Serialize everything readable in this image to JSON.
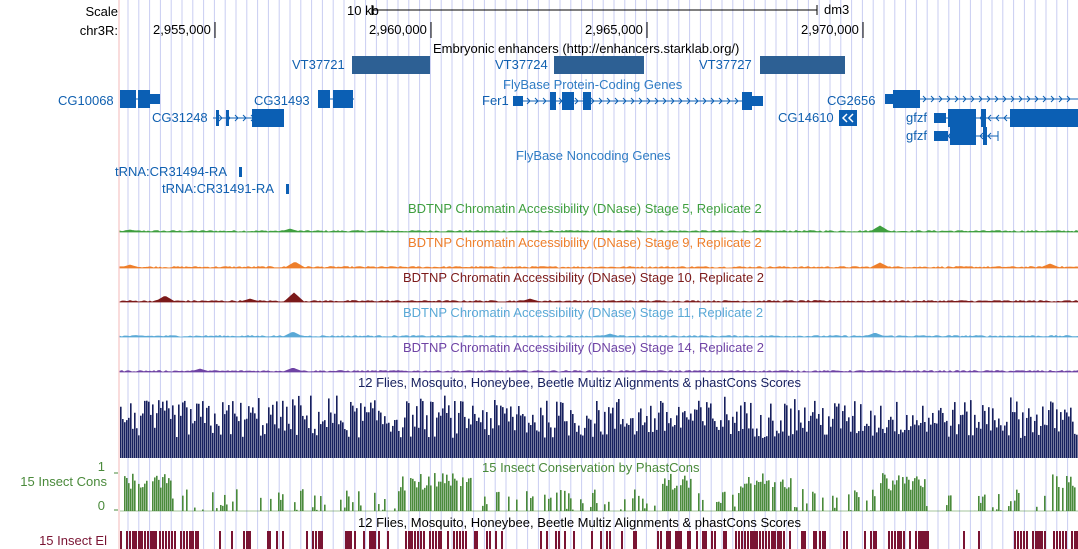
{
  "colors": {
    "guideline": "#c9cdf2",
    "redline": "#f3b8b8",
    "gene_blue": "#0b5fb4",
    "label_blue": "#1060b0",
    "track_title_blue": "#2f7cc4",
    "enhancer_fill": "#2d6094",
    "stage5": "#3f9f3f",
    "stage9": "#ee7f2b",
    "stage10": "#7c1a1a",
    "stage11": "#5aa9d6",
    "stage14": "#6f43a4",
    "multiz": "#17205e",
    "phastcons": "#4a8a3b",
    "elements": "#7a1433"
  },
  "ruler": {
    "scale_label": "Scale",
    "scale_bar_label": "10 kb",
    "assembly": "dm3",
    "chrom_label": "chr3R:",
    "ticks": [
      "2,955,000",
      "2,960,000",
      "2,965,000",
      "2,970,000"
    ]
  },
  "enhancers": {
    "title": "Embryonic enhancers (http://enhancers.starklab.org/)",
    "items": [
      "VT37721",
      "VT37724",
      "VT37727"
    ]
  },
  "protein_genes": {
    "title": "FlyBase Protein-Coding Genes",
    "genes": [
      "CG10068",
      "CG31248",
      "CG31493",
      "Fer1",
      "CG2656",
      "CG14610",
      "gfzf",
      "gfzf"
    ]
  },
  "noncoding": {
    "title": "FlyBase Noncoding Genes",
    "genes": [
      "tRNA:CR31494-RA",
      "tRNA:CR31491-RA"
    ]
  },
  "dnase_tracks": [
    {
      "title": "BDTNP Chromatin Accessibility (DNase) Stage 5, Replicate 2",
      "color": "#3f9f3f"
    },
    {
      "title": "BDTNP Chromatin Accessibility (DNase) Stage 9, Replicate 2",
      "color": "#ee7f2b"
    },
    {
      "title": "BDTNP Chromatin Accessibility (DNase) Stage 10, Replicate 2",
      "color": "#7c1a1a"
    },
    {
      "title": "BDTNP Chromatin Accessibility (DNase) Stage 11, Replicate 2",
      "color": "#5aa9d6"
    },
    {
      "title": "BDTNP Chromatin Accessibility (DNase) Stage 14, Replicate 2",
      "color": "#6f43a4"
    }
  ],
  "multiz": {
    "title": "12 Flies, Mosquito, Honeybee, Beetle Multiz Alignments & phastCons Scores"
  },
  "phastcons": {
    "title": "15 Insect Conservation by PhastCons",
    "side_label": "15 Insect Cons",
    "ymax": "1",
    "ymin": "0"
  },
  "elements": {
    "title": "12 Flies, Mosquito, Honeybee, Beetle Multiz Alignments & phastCons Scores",
    "side_label": "15 Insect El"
  }
}
